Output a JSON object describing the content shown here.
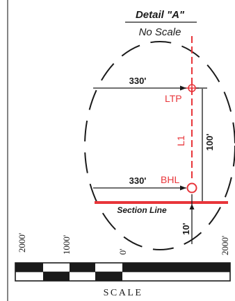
{
  "detail": {
    "title": "Detail \"A\"",
    "subtitle": "No Scale"
  },
  "dimensions": {
    "ltp_offset": "330'",
    "bhl_offset": "330'",
    "vertical_between": "100'",
    "section_offset": "10'"
  },
  "labels": {
    "ltp": "LTP",
    "lateral": "L1",
    "bhl": "BHL",
    "section_line": "Section Line"
  },
  "scale_bar": {
    "ticks": [
      "2000'",
      "1000'",
      "0'",
      "2000'"
    ],
    "caption": "SCALE"
  },
  "colors": {
    "line": "#1a1a1a",
    "accent": "#e8353a"
  }
}
